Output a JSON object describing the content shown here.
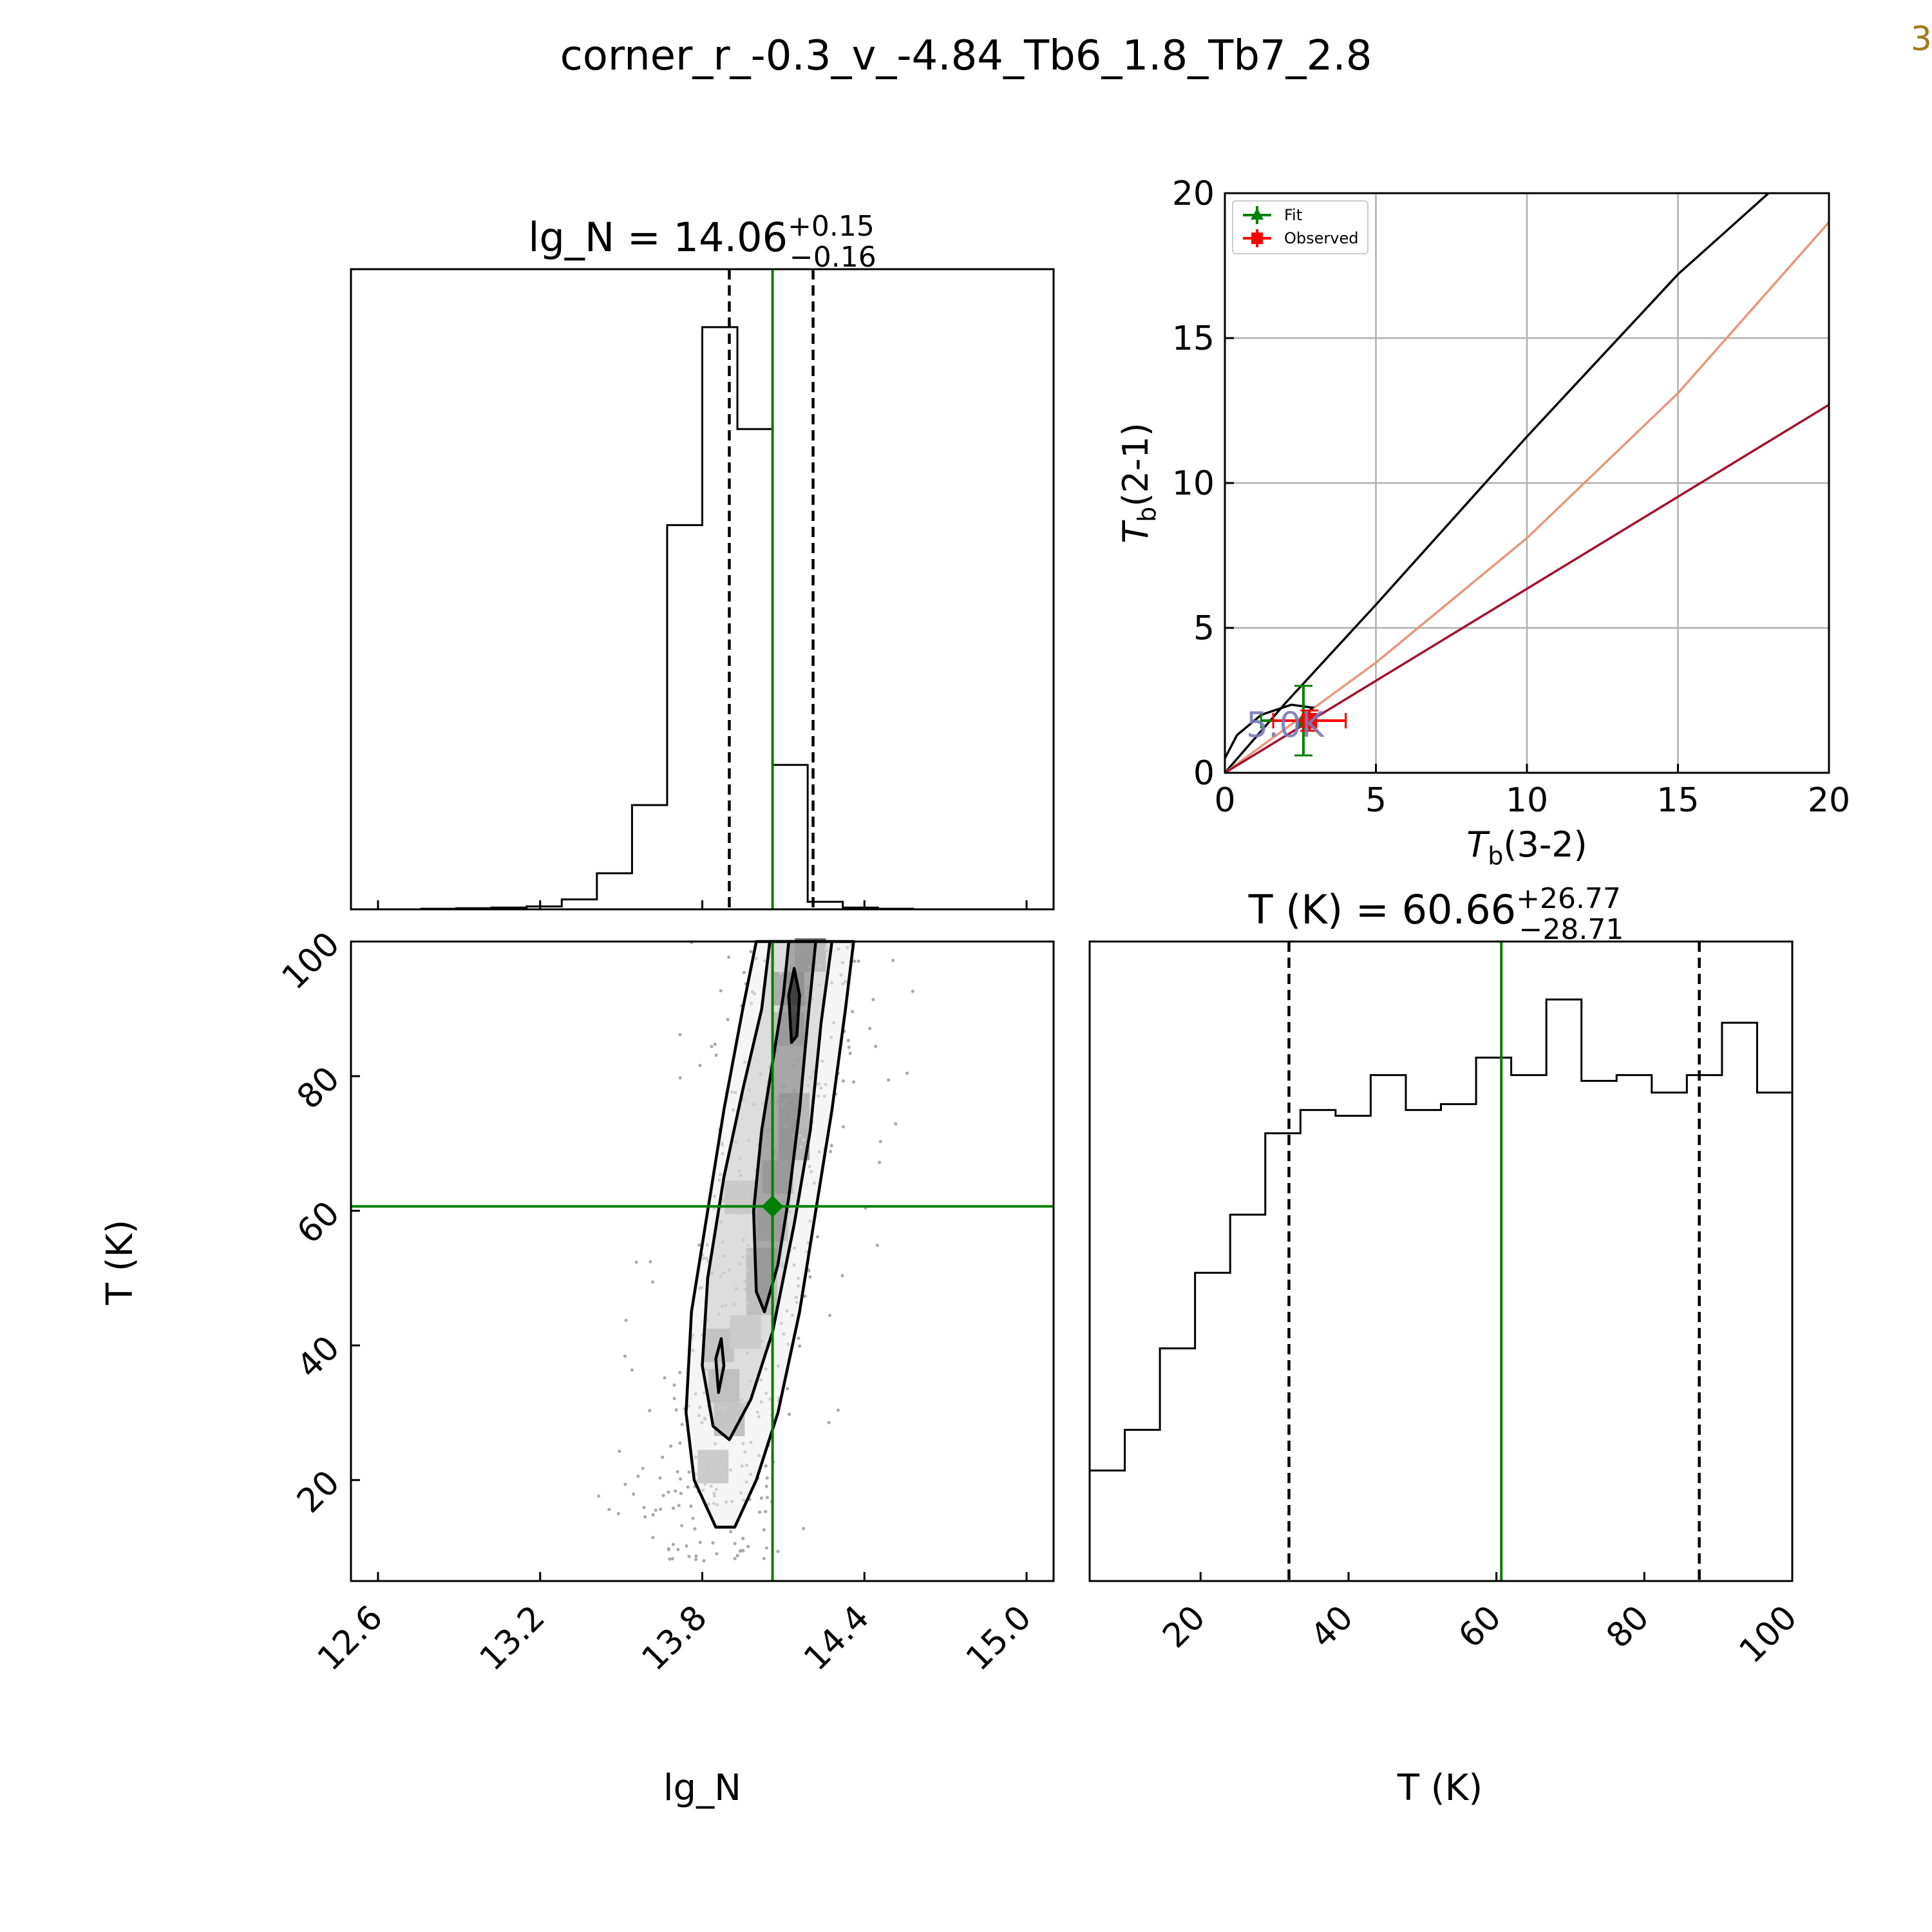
{
  "figure": {
    "title": "corner_r_-0.3_v_-4.84_Tb6_1.8_Tb7_2.8",
    "corner_mark": "3"
  },
  "chart_data": [
    {
      "type": "bar",
      "panel": "histogram",
      "parameter": "lg_N",
      "title": {
        "prefix": "lg_N = ",
        "value": "14.06",
        "upper": "+0.15",
        "lower": "−0.16"
      },
      "xlim": [
        12.5,
        15.1
      ],
      "bin_edges": [
        12.5,
        12.63,
        12.76,
        12.89,
        13.02,
        13.15,
        13.28,
        13.41,
        13.54,
        13.67,
        13.8,
        13.93,
        14.06,
        14.19,
        14.32,
        14.45,
        14.58,
        14.71,
        14.84,
        14.97,
        15.1
      ],
      "counts": [
        0,
        0,
        0.001,
        0.002,
        0.003,
        0.005,
        0.017,
        0.062,
        0.179,
        0.66,
        1.0,
        0.825,
        0.248,
        0.013,
        0.003,
        0.001,
        0,
        0,
        0,
        0
      ],
      "median": 14.06,
      "quantiles": [
        13.9,
        14.21
      ],
      "truth": 14.06
    },
    {
      "type": "scatter",
      "panel": "2d-density",
      "xlabel": "lg_N",
      "ylabel": "T (K)",
      "xlim": [
        12.5,
        15.1
      ],
      "ylim": [
        5,
        100
      ],
      "xticks": [
        "12.6",
        "13.2",
        "13.8",
        "14.4",
        "15.0"
      ],
      "yticks": [
        "20",
        "40",
        "60",
        "80",
        "100"
      ],
      "truth": {
        "x": 14.06,
        "y": 60.66
      },
      "contours": [
        [
          [
            13.85,
            13
          ],
          [
            13.77,
            20
          ],
          [
            13.74,
            30
          ],
          [
            13.76,
            45
          ],
          [
            13.82,
            60
          ],
          [
            13.88,
            75
          ],
          [
            13.95,
            90
          ],
          [
            14.0,
            100
          ],
          [
            14.36,
            100
          ],
          [
            14.33,
            90
          ],
          [
            14.28,
            75
          ],
          [
            14.22,
            60
          ],
          [
            14.16,
            45
          ],
          [
            14.08,
            30
          ],
          [
            14.0,
            20
          ],
          [
            13.92,
            13
          ]
        ],
        [
          [
            13.84,
            28
          ],
          [
            13.8,
            37
          ],
          [
            13.82,
            50
          ],
          [
            13.88,
            65
          ],
          [
            13.95,
            78
          ],
          [
            14.02,
            90
          ],
          [
            14.05,
            100
          ],
          [
            14.28,
            100
          ],
          [
            14.24,
            88
          ],
          [
            14.2,
            72
          ],
          [
            14.14,
            58
          ],
          [
            14.06,
            42
          ],
          [
            13.98,
            32
          ],
          [
            13.9,
            26
          ]
        ],
        [
          [
            14.0,
            48
          ],
          [
            13.99,
            60
          ],
          [
            14.02,
            72
          ],
          [
            14.06,
            82
          ],
          [
            14.1,
            92
          ],
          [
            14.12,
            100
          ],
          [
            14.22,
            100
          ],
          [
            14.19,
            88
          ],
          [
            14.16,
            75
          ],
          [
            14.12,
            62
          ],
          [
            14.08,
            52
          ],
          [
            14.03,
            45
          ]
        ],
        [
          [
            14.13,
            85
          ],
          [
            14.12,
            92
          ],
          [
            14.14,
            96
          ],
          [
            14.16,
            92
          ],
          [
            14.15,
            86
          ]
        ],
        [
          [
            13.86,
            33
          ],
          [
            13.85,
            38
          ],
          [
            13.87,
            41
          ],
          [
            13.88,
            37
          ]
        ]
      ],
      "density": [
        {
          "x": 14.12,
          "y": 93,
          "w": 1.0
        },
        {
          "x": 14.12,
          "y": 87,
          "w": 0.55
        },
        {
          "x": 14.14,
          "y": 75,
          "w": 0.75
        },
        {
          "x": 14.14,
          "y": 70,
          "w": 0.8
        },
        {
          "x": 14.08,
          "y": 65,
          "w": 0.55
        },
        {
          "x": 14.06,
          "y": 58,
          "w": 0.5
        },
        {
          "x": 14.02,
          "y": 52,
          "w": 0.55
        },
        {
          "x": 14.02,
          "y": 47,
          "w": 0.55
        },
        {
          "x": 13.86,
          "y": 40,
          "w": 0.5
        },
        {
          "x": 13.88,
          "y": 34,
          "w": 0.55
        },
        {
          "x": 13.9,
          "y": 29,
          "w": 0.45
        },
        {
          "x": 13.84,
          "y": 22,
          "w": 0.35
        },
        {
          "x": 13.96,
          "y": 42,
          "w": 0.3
        },
        {
          "x": 13.94,
          "y": 62,
          "w": 0.35
        },
        {
          "x": 14.2,
          "y": 98,
          "w": 0.6
        }
      ]
    },
    {
      "type": "bar",
      "panel": "histogram",
      "parameter": "T (K)",
      "title": {
        "prefix": "T (K) = ",
        "value": "60.66",
        "upper": "+26.77",
        "lower": "−28.71"
      },
      "xlabel": "T (K)",
      "xlim": [
        5,
        100
      ],
      "xticks": [
        "20",
        "40",
        "60",
        "80",
        "100"
      ],
      "bin_edges": [
        5,
        9.75,
        14.5,
        19.25,
        24,
        28.75,
        33.5,
        38.25,
        43,
        47.75,
        52.5,
        57.25,
        62,
        66.75,
        71.5,
        76.25,
        81,
        85.75,
        90.5,
        95.25,
        100
      ],
      "counts": [
        0.19,
        0.26,
        0.4,
        0.53,
        0.63,
        0.77,
        0.81,
        0.8,
        0.87,
        0.81,
        0.82,
        0.9,
        0.87,
        1.0,
        0.86,
        0.87,
        0.84,
        0.87,
        0.96,
        0.84
      ],
      "median": 60.66,
      "quantiles": [
        31.95,
        87.43
      ],
      "truth": 60.66
    },
    {
      "type": "line",
      "panel": "line-ratio",
      "xlabel": {
        "italic": "T",
        "sub": "b",
        "rest": "(3-2)"
      },
      "ylabel": {
        "italic": "T",
        "sub": "b",
        "rest": "(2-1)"
      },
      "xlim": [
        0,
        20
      ],
      "ylim": [
        0,
        20
      ],
      "xticks": [
        "0",
        "5",
        "10",
        "15",
        "20"
      ],
      "yticks": [
        "0",
        "5",
        "10",
        "15",
        "20"
      ],
      "grid": true,
      "legend_position": "upper-left",
      "legend": [
        "Fit",
        "Observed"
      ],
      "series": [
        {
          "color": "#000000",
          "x": [
            0,
            2,
            5,
            10,
            15,
            18
          ],
          "y": [
            0,
            2.4,
            5.8,
            11.6,
            17.2,
            20
          ]
        },
        {
          "color": "#e9967a",
          "x": [
            0,
            5,
            10,
            15,
            20
          ],
          "y": [
            0,
            3.8,
            8.1,
            13.1,
            19.0
          ]
        },
        {
          "color": "#a50f2d",
          "x": [
            0,
            20
          ],
          "y": [
            0,
            12.7
          ]
        },
        {
          "color": "#000000",
          "x": [
            0,
            0.4,
            1.2,
            2.2,
            2.9,
            2.5
          ],
          "y": [
            0.5,
            1.3,
            2.0,
            2.35,
            2.25,
            1.8
          ]
        }
      ],
      "points": [
        {
          "label": "Fit",
          "color": "#008000",
          "x": 2.6,
          "y": 1.8,
          "xerr": 1.4,
          "yerr": 1.2
        },
        {
          "label": "Observed",
          "color": "#ff0000",
          "x": 2.8,
          "y": 1.8,
          "xerr": 1.2,
          "yerr": 0.35
        }
      ],
      "annotation": {
        "text": "5.0K",
        "color": "#7a7ab8",
        "x": 0.7,
        "y": 1.65
      }
    }
  ]
}
